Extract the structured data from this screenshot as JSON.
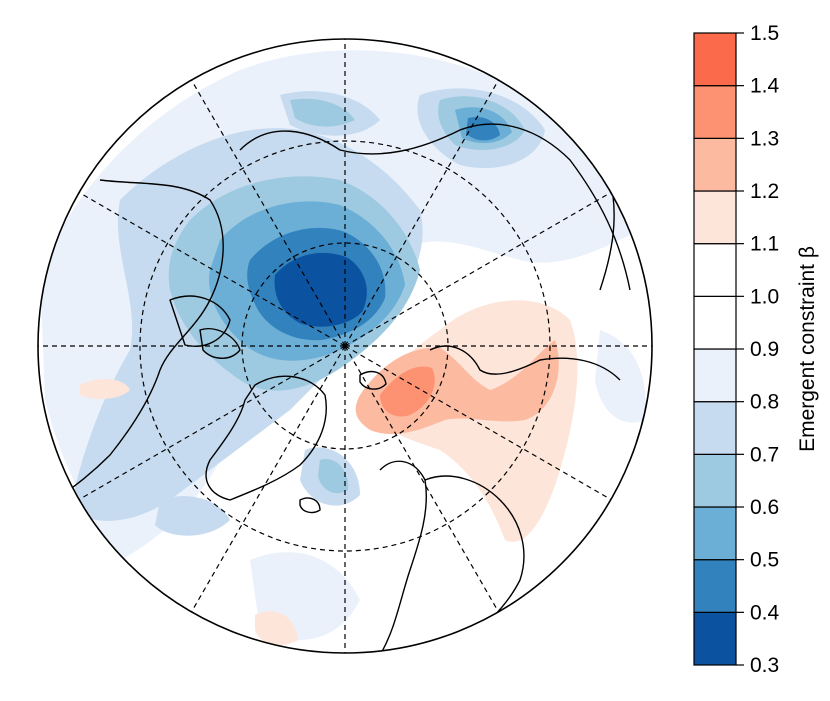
{
  "map": {
    "projection": "north-polar-stereographic",
    "graticule": "dashed"
  },
  "colorbar": {
    "title": "Emergent constraint β",
    "min": 0.3,
    "max": 1.5,
    "levels": [
      {
        "from": 0.3,
        "to": 0.4,
        "color": "#0b52a0"
      },
      {
        "from": 0.4,
        "to": 0.5,
        "color": "#3182bd"
      },
      {
        "from": 0.5,
        "to": 0.6,
        "color": "#6baed6"
      },
      {
        "from": 0.6,
        "to": 0.7,
        "color": "#9ecae1"
      },
      {
        "from": 0.7,
        "to": 0.8,
        "color": "#c6dbef"
      },
      {
        "from": 0.8,
        "to": 0.9,
        "color": "#eaf1fb"
      },
      {
        "from": 0.9,
        "to": 1.0,
        "color": "#ffffff"
      },
      {
        "from": 1.0,
        "to": 1.1,
        "color": "#ffffff"
      },
      {
        "from": 1.1,
        "to": 1.2,
        "color": "#fde5da"
      },
      {
        "from": 1.2,
        "to": 1.3,
        "color": "#fcbba1"
      },
      {
        "from": 1.3,
        "to": 1.4,
        "color": "#fc9272"
      },
      {
        "from": 1.4,
        "to": 1.5,
        "color": "#fb6a4a"
      }
    ],
    "tick_labels": [
      "0.3",
      "0.4",
      "0.5",
      "0.6",
      "0.7",
      "0.8",
      "0.9",
      "1.0",
      "1.1",
      "1.2",
      "1.3",
      "1.4",
      "1.5"
    ]
  }
}
